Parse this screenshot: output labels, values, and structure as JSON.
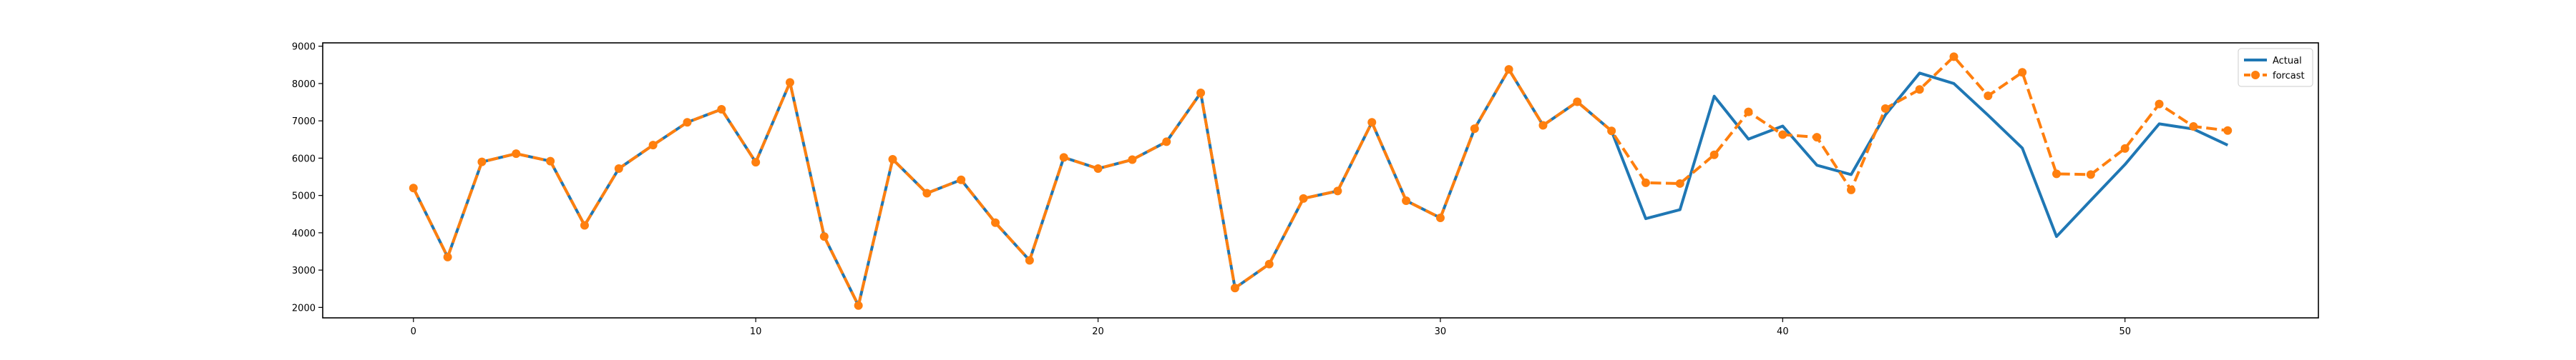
{
  "chart_data": {
    "type": "line",
    "title": "",
    "xlabel": "",
    "ylabel": "",
    "xlim": [
      -2.65,
      55.65
    ],
    "ylim": [
      1720,
      9090
    ],
    "x_ticks": [
      0,
      10,
      20,
      30,
      40,
      50
    ],
    "y_ticks": [
      2000,
      3000,
      4000,
      5000,
      6000,
      7000,
      8000,
      9000
    ],
    "legend_position": "top-right",
    "grid": false,
    "x": [
      0,
      1,
      2,
      3,
      4,
      5,
      6,
      7,
      8,
      9,
      10,
      11,
      12,
      13,
      14,
      15,
      16,
      17,
      18,
      19,
      20,
      21,
      22,
      23,
      24,
      25,
      26,
      27,
      28,
      29,
      30,
      31,
      32,
      33,
      34,
      35,
      36,
      37,
      38,
      39,
      40,
      41,
      42,
      43,
      44,
      45,
      46,
      47,
      48,
      49,
      50,
      51,
      52,
      53
    ],
    "series": [
      {
        "name": "Actual",
        "color": "#1f77b4",
        "style": "solid",
        "marker": "none",
        "values": [
          5200,
          3350,
          5900,
          6120,
          5920,
          4200,
          5720,
          6350,
          6960,
          7310,
          5890,
          8030,
          3900,
          2050,
          5970,
          5060,
          5420,
          4270,
          3260,
          6020,
          5720,
          5960,
          6440,
          7750,
          2520,
          3160,
          4920,
          5120,
          6960,
          4860,
          4400,
          6790,
          8380,
          6880,
          7510,
          6730,
          4380,
          4620,
          7660,
          6510,
          6860,
          5810,
          5560,
          7160,
          8280,
          8000,
          7150,
          6270,
          3900,
          4870,
          5830,
          6920,
          6780,
          6350
        ]
      },
      {
        "name": "forcast",
        "color": "#ff7f0e",
        "style": "dashed",
        "marker": "circle",
        "values": [
          5200,
          3350,
          5900,
          6120,
          5920,
          4200,
          5720,
          6350,
          6960,
          7310,
          5890,
          8030,
          3900,
          2050,
          5970,
          5060,
          5420,
          4270,
          3260,
          6020,
          5720,
          5960,
          6440,
          7750,
          2520,
          3160,
          4920,
          5120,
          6960,
          4860,
          4400,
          6790,
          8380,
          6880,
          7510,
          6730,
          5340,
          5320,
          6090,
          7240,
          6630,
          6560,
          5150,
          7330,
          7840,
          8720,
          7670,
          8300,
          5580,
          5560,
          6260,
          7450,
          6850,
          6740
        ]
      }
    ]
  }
}
